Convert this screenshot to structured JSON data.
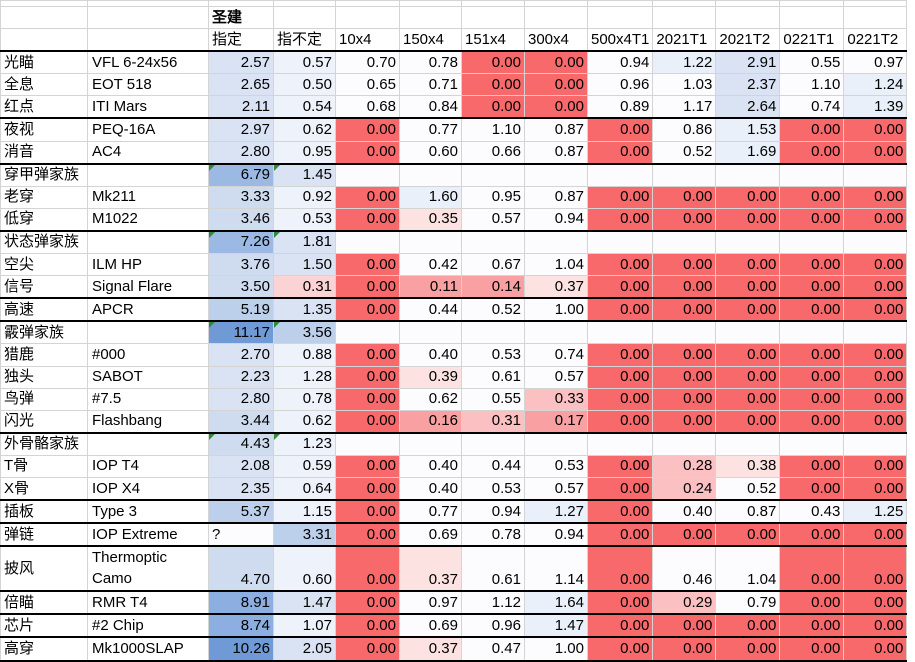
{
  "sheet": {
    "super_header": "圣建",
    "columns": [
      "",
      "",
      "指定",
      "指不定",
      "10x4",
      "150x4",
      "151x4",
      "300x4",
      "500x4T1",
      "2021T1",
      "2021T2",
      "0221T1",
      "0221T2"
    ],
    "colors": {
      "red": "#f8696b",
      "white": "#fcfcff",
      "blue_light": "#dae3f3",
      "blue_mid": "#bdd0eb",
      "blue_dark": "#9bb9e2"
    },
    "rows": [
      {
        "cat": "光瞄",
        "name": "VFL 6-24x56",
        "vals": [
          "2.57",
          "0.57",
          "0.70",
          "0.78",
          "0.00",
          "0.00",
          "0.94",
          "1.22",
          "2.91",
          "0.55",
          "0.97"
        ],
        "thick": false
      },
      {
        "cat": "全息",
        "name": "EOT 518",
        "vals": [
          "2.65",
          "0.50",
          "0.65",
          "0.71",
          "0.00",
          "0.00",
          "0.96",
          "1.03",
          "2.37",
          "1.10",
          "1.24"
        ],
        "thick": false
      },
      {
        "cat": "红点",
        "name": "ITI Mars",
        "vals": [
          "2.11",
          "0.54",
          "0.68",
          "0.84",
          "0.00",
          "0.00",
          "0.89",
          "1.17",
          "2.64",
          "0.74",
          "1.39"
        ],
        "thick": true
      },
      {
        "cat": "夜视",
        "name": "PEQ-16A",
        "vals": [
          "2.97",
          "0.62",
          "0.00",
          "0.77",
          "1.10",
          "0.87",
          "0.00",
          "0.86",
          "1.53",
          "0.00",
          "0.00"
        ],
        "thick": false
      },
      {
        "cat": "消音",
        "name": "AC4",
        "vals": [
          "2.80",
          "0.95",
          "0.00",
          "0.60",
          "0.66",
          "0.87",
          "0.00",
          "0.52",
          "1.69",
          "0.00",
          "0.00"
        ],
        "thick": true
      },
      {
        "cat": "穿甲弹家族",
        "name": "",
        "vals": [
          "6.79",
          "1.45",
          "",
          "",
          "",
          "",
          "",
          "",
          "",
          "",
          ""
        ],
        "thick": false
      },
      {
        "cat": "老穿",
        "name": "Mk211",
        "vals": [
          "3.33",
          "0.92",
          "0.00",
          "1.60",
          "0.95",
          "0.87",
          "0.00",
          "0.00",
          "0.00",
          "0.00",
          "0.00"
        ],
        "thick": false
      },
      {
        "cat": "低穿",
        "name": "M1022",
        "vals": [
          "3.46",
          "0.53",
          "0.00",
          "0.35",
          "0.57",
          "0.94",
          "0.00",
          "0.00",
          "0.00",
          "0.00",
          "0.00"
        ],
        "thick": true
      },
      {
        "cat": "状态弹家族",
        "name": "",
        "vals": [
          "7.26",
          "1.81",
          "",
          "",
          "",
          "",
          "",
          "",
          "",
          "",
          ""
        ],
        "thick": false
      },
      {
        "cat": "空尖",
        "name": "ILM HP",
        "vals": [
          "3.76",
          "1.50",
          "0.00",
          "0.42",
          "0.67",
          "1.04",
          "0.00",
          "0.00",
          "0.00",
          "0.00",
          "0.00"
        ],
        "thick": false
      },
      {
        "cat": "信号",
        "name": "Signal Flare",
        "vals": [
          "3.50",
          "0.31",
          "0.00",
          "0.11",
          "0.14",
          "0.37",
          "0.00",
          "0.00",
          "0.00",
          "0.00",
          "0.00"
        ],
        "thick": true
      },
      {
        "cat": "高速",
        "name": "APCR",
        "vals": [
          "5.19",
          "1.35",
          "0.00",
          "0.44",
          "0.52",
          "1.00",
          "0.00",
          "0.00",
          "0.00",
          "0.00",
          "0.00"
        ],
        "thick": true
      },
      {
        "cat": "霰弹家族",
        "name": "",
        "vals": [
          "11.17",
          "3.56",
          "",
          "",
          "",
          "",
          "",
          "",
          "",
          "",
          ""
        ],
        "thick": false
      },
      {
        "cat": "猎鹿",
        "name": "#000",
        "vals": [
          "2.70",
          "0.88",
          "0.00",
          "0.40",
          "0.53",
          "0.74",
          "0.00",
          "0.00",
          "0.00",
          "0.00",
          "0.00"
        ],
        "thick": false
      },
      {
        "cat": "独头",
        "name": "SABOT",
        "vals": [
          "2.23",
          "1.28",
          "0.00",
          "0.39",
          "0.61",
          "0.57",
          "0.00",
          "0.00",
          "0.00",
          "0.00",
          "0.00"
        ],
        "thick": false
      },
      {
        "cat": "鸟弹",
        "name": "#7.5",
        "vals": [
          "2.80",
          "0.78",
          "0.00",
          "0.62",
          "0.55",
          "0.33",
          "0.00",
          "0.00",
          "0.00",
          "0.00",
          "0.00"
        ],
        "thick": false
      },
      {
        "cat": "闪光",
        "name": "Flashbang",
        "vals": [
          "3.44",
          "0.62",
          "0.00",
          "0.16",
          "0.31",
          "0.17",
          "0.00",
          "0.00",
          "0.00",
          "0.00",
          "0.00"
        ],
        "thick": true
      },
      {
        "cat": "外骨骼家族",
        "name": "",
        "vals": [
          "4.43",
          "1.23",
          "",
          "",
          "",
          "",
          "",
          "",
          "",
          "",
          ""
        ],
        "thick": false
      },
      {
        "cat": "T骨",
        "name": "IOP T4",
        "vals": [
          "2.08",
          "0.59",
          "0.00",
          "0.40",
          "0.44",
          "0.53",
          "0.00",
          "0.28",
          "0.38",
          "0.00",
          "0.00"
        ],
        "thick": false
      },
      {
        "cat": "X骨",
        "name": "IOP X4",
        "vals": [
          "2.35",
          "0.64",
          "0.00",
          "0.40",
          "0.53",
          "0.57",
          "0.00",
          "0.24",
          "0.52",
          "0.00",
          "0.00"
        ],
        "thick": true
      },
      {
        "cat": "插板",
        "name": "Type 3",
        "vals": [
          "5.37",
          "1.15",
          "0.00",
          "0.77",
          "0.94",
          "1.27",
          "0.00",
          "0.40",
          "0.87",
          "0.43",
          "1.25"
        ],
        "thick": true
      },
      {
        "cat": "弹链",
        "name": "IOP Extreme",
        "vals": [
          "?",
          "3.31",
          "0.00",
          "0.69",
          "0.78",
          "0.94",
          "0.00",
          "0.00",
          "0.00",
          "0.00",
          "0.00"
        ],
        "thick": true
      },
      {
        "cat": "披风",
        "name": "Thermoptic Camo",
        "vals": [
          "4.70",
          "0.60",
          "0.00",
          "0.37",
          "0.61",
          "1.14",
          "0.00",
          "0.46",
          "1.04",
          "0.00",
          "0.00"
        ],
        "thick": true,
        "tall": true
      },
      {
        "cat": "倍瞄",
        "name": "RMR T4",
        "vals": [
          "8.91",
          "1.47",
          "0.00",
          "0.97",
          "1.12",
          "1.64",
          "0.00",
          "0.29",
          "0.79",
          "0.00",
          "0.00"
        ],
        "thick": true
      },
      {
        "cat": "芯片",
        "name": "#2 Chip",
        "vals": [
          "8.74",
          "1.07",
          "0.00",
          "0.69",
          "0.96",
          "1.47",
          "0.00",
          "0.00",
          "0.00",
          "0.00",
          "0.00"
        ],
        "thick": true
      },
      {
        "cat": "高穿",
        "name": "Mk1000SLAP",
        "vals": [
          "10.26",
          "2.05",
          "0.00",
          "0.37",
          "0.47",
          "1.00",
          "0.00",
          "0.00",
          "0.00",
          "0.00",
          "0.00"
        ],
        "thick": true
      }
    ]
  }
}
